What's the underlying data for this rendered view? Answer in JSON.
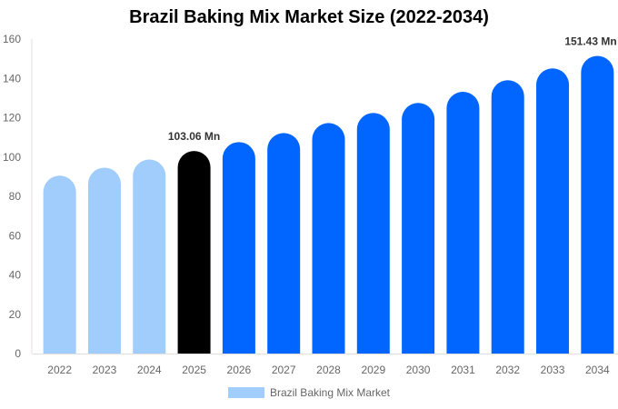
{
  "chart_data": {
    "type": "bar",
    "title": "Brazil Baking Mix Market Size (2022-2034)",
    "categories": [
      "2022",
      "2023",
      "2024",
      "2025",
      "2026",
      "2027",
      "2028",
      "2029",
      "2030",
      "2031",
      "2032",
      "2033",
      "2034"
    ],
    "series": [
      {
        "name": "Brazil Baking Mix Market",
        "values": [
          90.5,
          94.6,
          98.7,
          103.06,
          107.6,
          112.2,
          117.3,
          122.4,
          127.5,
          133.2,
          139.1,
          145.1,
          151.43
        ]
      }
    ],
    "data_labels": {
      "3": "103.06 Mn",
      "12": "151.43 Mn"
    },
    "bar_colors": {
      "historical": "#a0cdfc",
      "current": "#000000",
      "forecast": "#0066ff"
    },
    "bar_color_by_index": [
      "historical",
      "historical",
      "historical",
      "current",
      "forecast",
      "forecast",
      "forecast",
      "forecast",
      "forecast",
      "forecast",
      "forecast",
      "forecast",
      "forecast"
    ],
    "ylim": [
      0,
      160
    ],
    "yticks": [
      0,
      20,
      40,
      60,
      80,
      100,
      120,
      140,
      160
    ],
    "xlabel": "",
    "ylabel": "",
    "grid": false,
    "legend": {
      "position": "bottom",
      "label": "Brazil Baking Mix Market",
      "color": "#a0cdfc"
    }
  }
}
